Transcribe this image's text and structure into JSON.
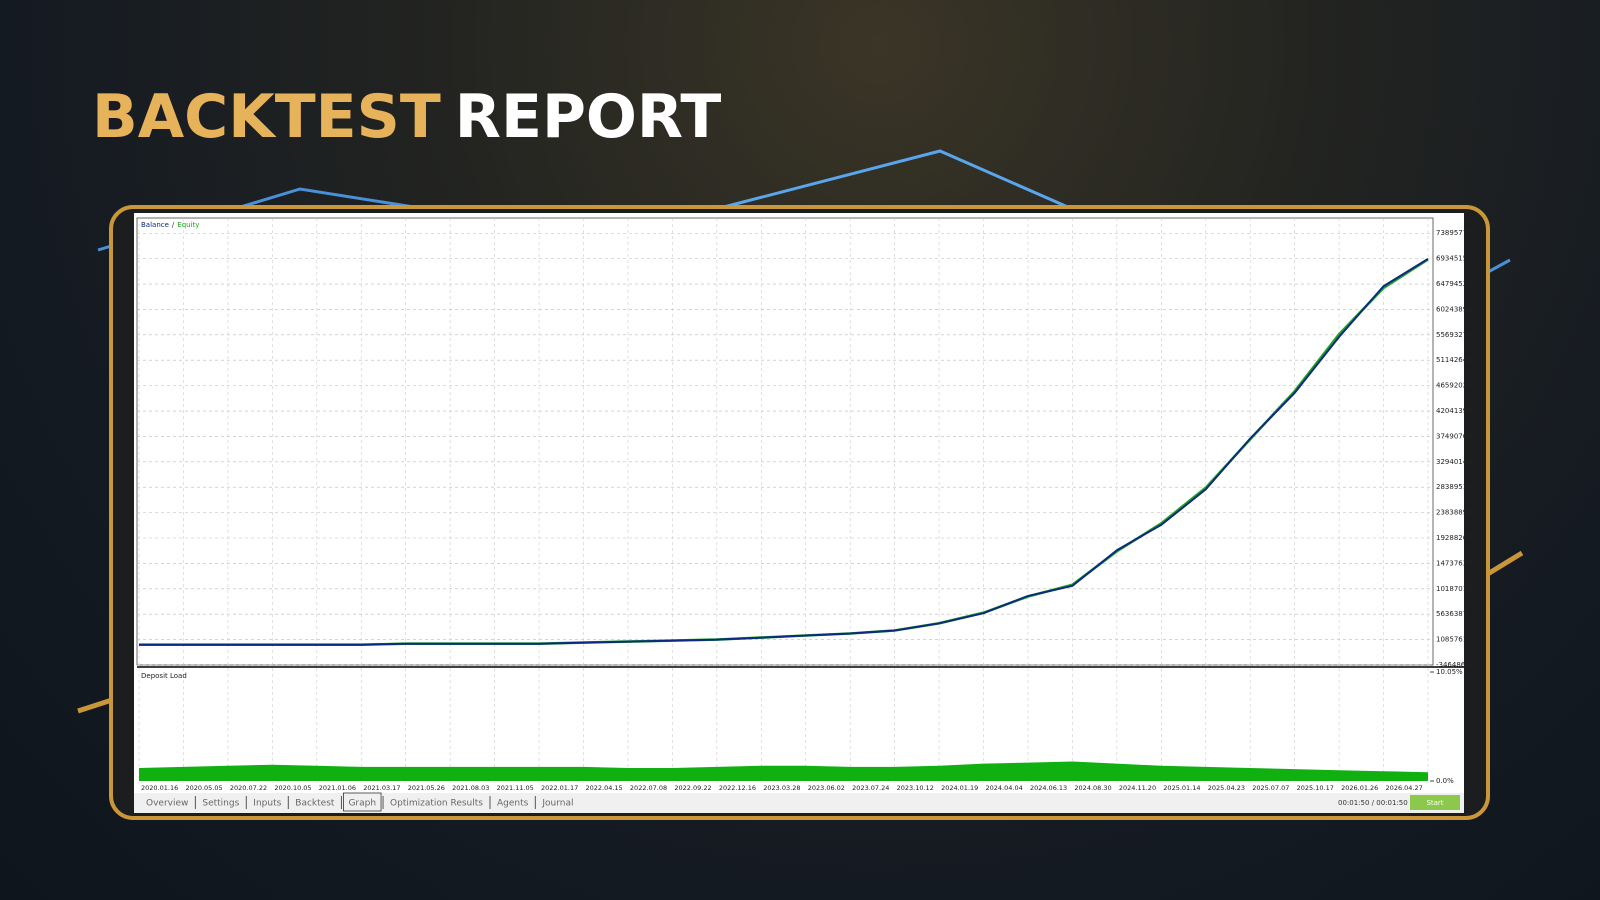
{
  "header": {
    "title_accent": "BACKTEST",
    "title": "REPORT"
  },
  "chart_data": [
    {
      "type": "line",
      "legend_separator": "/",
      "categories": [
        "2020.01.16",
        "2020.05.05",
        "2020.07.22",
        "2020.10.05",
        "2021.01.06",
        "2021.03.17",
        "2021.05.26",
        "2021.08.03",
        "2021.11.05",
        "2022.01.17",
        "2022.04.15",
        "2022.07.08",
        "2022.09.22",
        "2022.12.16",
        "2023.03.28",
        "2023.06.02",
        "2023.07.24",
        "2023.10.12",
        "2024.01.19",
        "2024.04.04",
        "2024.06.13",
        "2024.08.30",
        "2024.11.20",
        "2025.01.14",
        "2025.04.23",
        "2025.07.07",
        "2025.10.17",
        "2026.01.26",
        "2026.04.27",
        null
      ],
      "series": [
        {
          "name": "Balance",
          "color": "#0b2a80",
          "values": [
            175636,
            175636,
            175636,
            175636,
            175636,
            175636,
            357661,
            357661,
            357661,
            357661,
            539686,
            721711,
            903736,
            1085761,
            1449811,
            1813861,
            2177911,
            2724000,
            4000000,
            5818000,
            8913000,
            10733000,
            17100000,
            21650000,
            28020000,
            37120000,
            45310000,
            55320000,
            64420000,
            69300000
          ]
        },
        {
          "name": "Equity",
          "color": "#1fa31f",
          "values": [
            175636,
            175636,
            175636,
            175636,
            175636,
            175636,
            357661,
            357661,
            357661,
            357661,
            539686,
            721711,
            903736,
            1085761,
            1449811,
            1813861,
            2177911,
            2724000,
            4000000,
            5900000,
            8800000,
            10900000,
            16900000,
            21900000,
            28300000,
            37000000,
            45600000,
            55800000,
            64100000,
            69200000
          ]
        }
      ],
      "ylim": [
        -3464865,
        76626153
      ],
      "yticks": [
        -3464865,
        1085761,
        5636387,
        10187013,
        14737639,
        19288265,
        23838891,
        28389517,
        32940143,
        37490769,
        42041395,
        46592021,
        51142647,
        55693273,
        60243899,
        64794525,
        69345151,
        73895777
      ],
      "grid": true
    },
    {
      "type": "area",
      "title": "Deposit Load",
      "color": "#10b010",
      "values": [
        1.2,
        1.3,
        1.4,
        1.5,
        1.4,
        1.3,
        1.3,
        1.3,
        1.3,
        1.3,
        1.3,
        1.2,
        1.2,
        1.3,
        1.4,
        1.4,
        1.3,
        1.3,
        1.4,
        1.6,
        1.7,
        1.8,
        1.6,
        1.4,
        1.3,
        1.2,
        1.1,
        1.0,
        0.9,
        0.8
      ],
      "ylim": [
        0,
        10.05
      ],
      "yticks": [
        {
          "value": 10.05,
          "label": "10.05%"
        },
        {
          "value": 0,
          "label": "0.0%"
        }
      ]
    }
  ],
  "tabs": [
    "Overview",
    "Settings",
    "Inputs",
    "Backtest",
    "Graph",
    "Optimization Results",
    "Agents",
    "Journal"
  ],
  "active_tab": 4,
  "status": {
    "time": "00:01:50 / 00:01:50",
    "button": "Start"
  }
}
